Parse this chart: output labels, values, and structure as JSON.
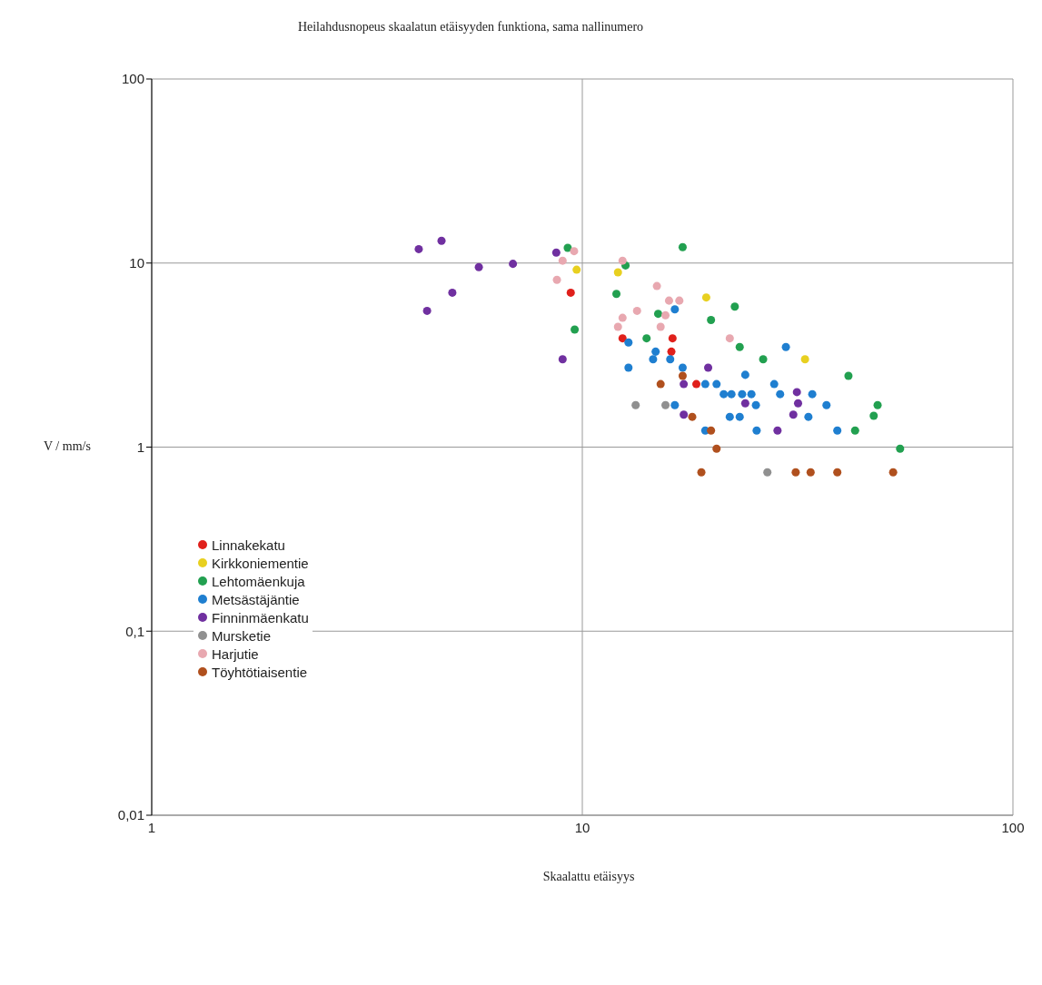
{
  "chart_data": {
    "type": "scatter",
    "title": "Heilahdusnopeus skaalatun etäisyyden funktiona, sama nallinumero",
    "xlabel": "Skaalattu etäisyys",
    "ylabel": "V / mm/s",
    "log": "xy",
    "grid": true,
    "legend": "bottom left",
    "marker": "circle",
    "xlim": [
      1,
      100
    ],
    "xticks": [
      1,
      10,
      100
    ],
    "ylim": [
      0.01,
      100
    ],
    "yticks": [
      {
        "value": 0.01,
        "label": "0,01"
      },
      {
        "value": 0.1,
        "label": "0,1"
      },
      1,
      10,
      100
    ],
    "series": [
      {
        "name": "Linnakekatu",
        "color": "#e0201b",
        "x": [
          9.4,
          12.4,
          16.2,
          16.1,
          18.4
        ],
        "values": [
          6.9,
          3.9,
          3.9,
          3.3,
          2.2
        ]
      },
      {
        "name": "Kirkkoniementie",
        "color": "#e8d020",
        "x": [
          9.7,
          12.1,
          19.4,
          32.9
        ],
        "values": [
          9.2,
          8.9,
          6.5,
          3.0
        ]
      },
      {
        "name": "Lehtomäenkuja",
        "color": "#22a050",
        "x": [
          9.25,
          9.6,
          12.0,
          17.1,
          14.1,
          12.6,
          15.0,
          22.6,
          19.9,
          23.2,
          26.3,
          41.5,
          48.5,
          47.5,
          43,
          54.7
        ],
        "values": [
          12.1,
          4.35,
          6.8,
          12.2,
          3.9,
          9.7,
          5.3,
          5.8,
          4.9,
          3.5,
          3.0,
          2.44,
          1.69,
          1.48,
          1.23,
          0.98
        ]
      },
      {
        "name": "Metsästäjäntie",
        "color": "#1f7fd0",
        "x": [
          12.8,
          14.8,
          14.6,
          16.0,
          12.8,
          16.4,
          16.4,
          17.1,
          19.3,
          20.5,
          21.3,
          22.2,
          23.5,
          24.7,
          25.3,
          23.9,
          22.0,
          23.2,
          19.3,
          25.4,
          27.9,
          28.8,
          29.7,
          33.5,
          34.2,
          36.9,
          39.1
        ],
        "values": [
          3.7,
          3.3,
          3.0,
          3.0,
          2.7,
          5.6,
          1.69,
          2.7,
          2.2,
          2.2,
          1.94,
          1.94,
          1.94,
          1.94,
          1.69,
          2.47,
          1.46,
          1.46,
          1.23,
          1.23,
          2.2,
          1.94,
          3.5,
          1.46,
          1.94,
          1.69,
          1.23
        ]
      },
      {
        "name": "Finninmäenkatu",
        "color": "#7030a0",
        "x": [
          4.17,
          4.71,
          5.75,
          6.9,
          4.99,
          4.36,
          8.7,
          9.0,
          19.6,
          17.2,
          17.2,
          23.9,
          28.4,
          31.5,
          31.7,
          30.9
        ],
        "values": [
          11.9,
          13.2,
          9.5,
          9.9,
          6.9,
          5.5,
          11.4,
          3.0,
          2.7,
          2.2,
          1.5,
          1.73,
          1.23,
          1.99,
          1.73,
          1.5
        ]
      },
      {
        "name": "Mursketie",
        "color": "#909090",
        "x": [
          13.3,
          15.6,
          26.9
        ],
        "values": [
          1.69,
          1.69,
          0.73
        ]
      },
      {
        "name": "Harjutie",
        "color": "#e8a8b0",
        "x": [
          9.57,
          9.0,
          8.73,
          12.4,
          14.9,
          15.9,
          16.8,
          12.4,
          13.4,
          12.1,
          15.6,
          15.2,
          22.0
        ],
        "values": [
          11.6,
          10.3,
          8.1,
          10.3,
          7.5,
          6.25,
          6.25,
          5.04,
          5.5,
          4.5,
          5.2,
          4.5,
          3.9
        ]
      },
      {
        "name": "Töyhtötiaisentie",
        "color": "#b0501e",
        "x": [
          15.2,
          17.1,
          18.0,
          19.9,
          20.5,
          18.9,
          31.3,
          33.9,
          39.1,
          52.7
        ],
        "values": [
          2.2,
          2.44,
          1.46,
          1.23,
          0.98,
          0.73,
          0.73,
          0.73,
          0.73,
          0.73
        ]
      }
    ]
  }
}
